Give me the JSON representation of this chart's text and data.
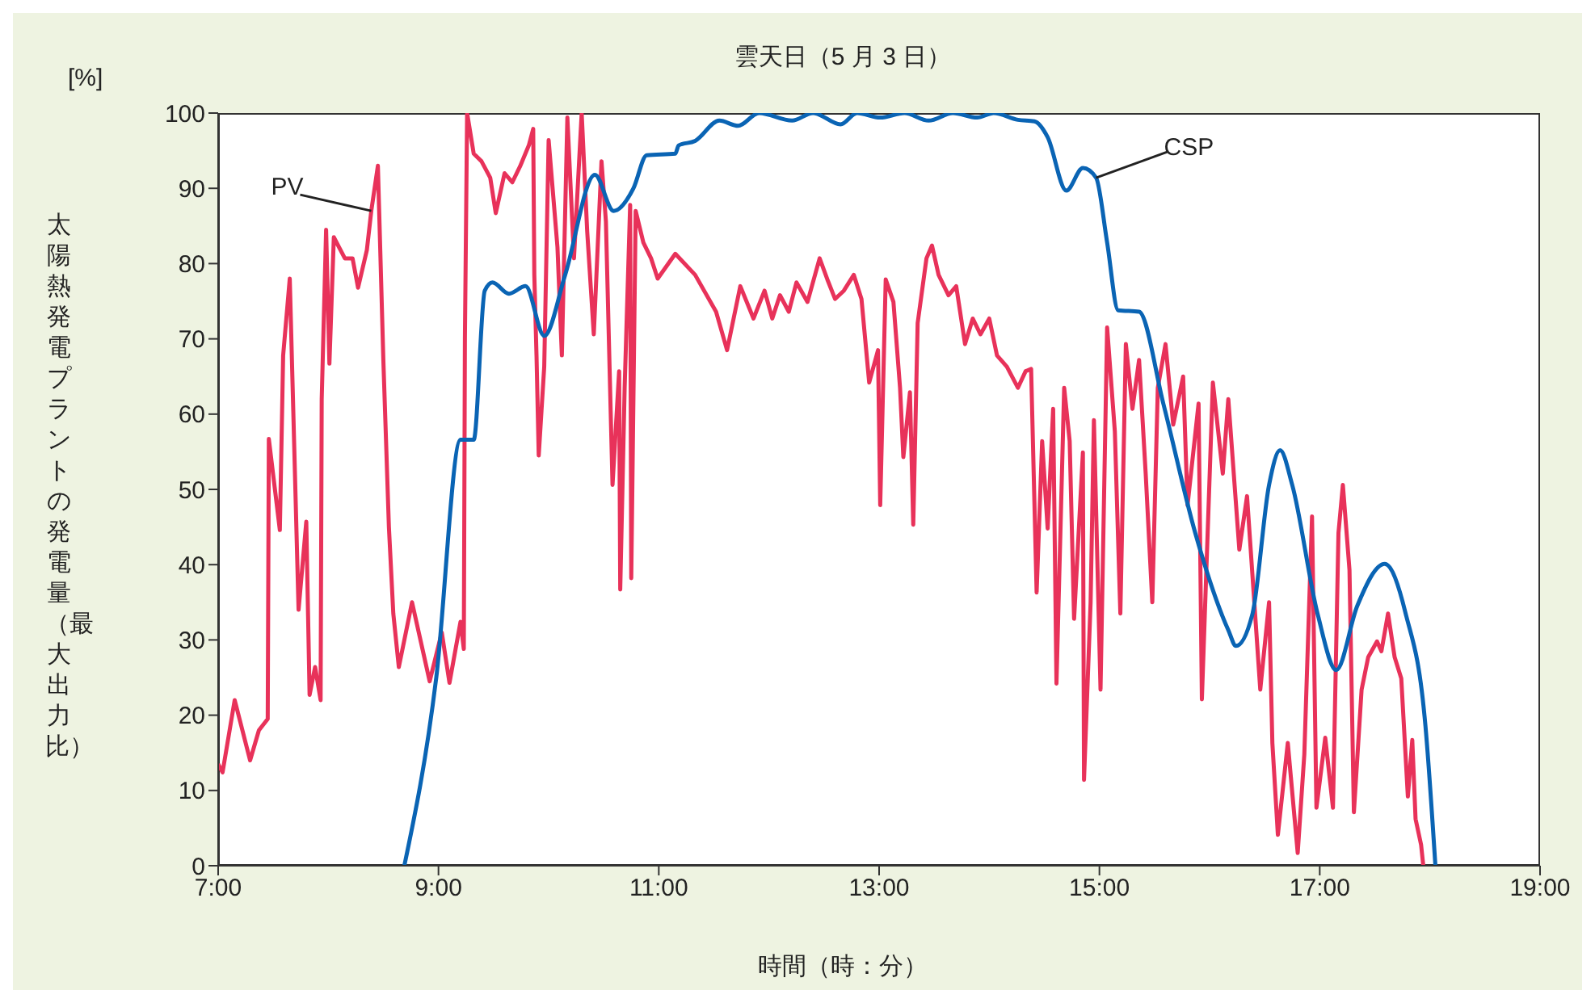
{
  "chart_data": {
    "type": "line",
    "title": "雲天日（5 月 3 日）",
    "xlabel": "時間（時：分）",
    "ylabel": "太陽熱発電プラントの発電量（最大出力比）",
    "annotations": [
      "[%]"
    ],
    "xlim": [
      7,
      19
    ],
    "xticks": [
      {
        "value": 7,
        "label": "7:00"
      },
      {
        "value": 9,
        "label": "9:00"
      },
      {
        "value": 11,
        "label": "11:00"
      },
      {
        "value": 13,
        "label": "13:00"
      },
      {
        "value": 15,
        "label": "15:00"
      },
      {
        "value": 17,
        "label": "17:00"
      },
      {
        "value": 19,
        "label": "19:00"
      }
    ],
    "ylim": [
      0,
      100
    ],
    "yticks": [
      0,
      10,
      20,
      30,
      40,
      50,
      60,
      70,
      80,
      90,
      100
    ],
    "grid": false,
    "legend": false,
    "marker": "none",
    "line_style": "solid",
    "series": [
      {
        "name": "PV",
        "color": "#e8325a",
        "x": [
          7.0,
          7.04,
          7.15,
          7.29,
          7.37,
          7.45,
          7.46,
          7.56,
          7.59,
          7.65,
          7.73,
          7.8,
          7.83,
          7.88,
          7.93,
          7.94,
          7.98,
          8.01,
          8.05,
          8.15,
          8.22,
          8.27,
          8.35,
          8.39,
          8.45,
          8.5,
          8.55,
          8.59,
          8.64,
          8.76,
          8.92,
          9.03,
          9.1,
          9.2,
          9.23,
          9.24,
          9.26,
          9.32,
          9.39,
          9.47,
          9.52,
          9.6,
          9.67,
          9.74,
          9.82,
          9.86,
          9.87,
          9.89,
          9.91,
          9.96,
          10.0,
          10.08,
          10.12,
          10.17,
          10.23,
          10.3,
          10.35,
          10.41,
          10.48,
          10.52,
          10.58,
          10.64,
          10.65,
          10.69,
          10.74,
          10.75,
          10.79,
          10.86,
          10.93,
          10.99,
          11.15,
          11.33,
          11.52,
          11.62,
          11.74,
          11.86,
          11.96,
          12.03,
          12.1,
          12.18,
          12.25,
          12.35,
          12.46,
          12.53,
          12.6,
          12.68,
          12.77,
          12.84,
          12.91,
          12.99,
          13.01,
          13.06,
          13.13,
          13.19,
          13.22,
          13.28,
          13.31,
          13.35,
          13.43,
          13.48,
          13.54,
          13.63,
          13.7,
          13.78,
          13.85,
          13.92,
          14.0,
          14.07,
          14.16,
          14.26,
          14.33,
          14.38,
          14.43,
          14.48,
          14.53,
          14.58,
          14.61,
          14.68,
          14.73,
          14.77,
          14.85,
          14.86,
          14.92,
          14.95,
          15.01,
          15.07,
          15.14,
          15.19,
          15.24,
          15.3,
          15.36,
          15.42,
          15.48,
          15.53,
          15.6,
          15.67,
          15.76,
          15.8,
          15.9,
          15.93,
          16.03,
          16.12,
          16.17,
          16.27,
          16.34,
          16.42,
          16.46,
          16.54,
          16.57,
          16.62,
          16.71,
          16.8,
          16.86,
          16.93,
          16.97,
          17.05,
          17.12,
          17.17,
          17.21,
          17.27,
          17.31,
          17.38,
          17.44,
          17.52,
          17.56,
          17.62,
          17.68,
          17.74,
          17.8,
          17.84,
          17.87,
          17.92,
          17.94
        ],
        "values": [
          13.5,
          12.4,
          22,
          14,
          18,
          19.5,
          56.7,
          44.6,
          67.8,
          78,
          34,
          45.7,
          22.7,
          26.4,
          22,
          62,
          84.5,
          66.7,
          83.5,
          80.7,
          80.7,
          76.8,
          81.8,
          87,
          93,
          67,
          45,
          33.5,
          26.4,
          35,
          24.5,
          31,
          24.3,
          32.4,
          28.8,
          70,
          100,
          94.6,
          93.6,
          91.4,
          86.7,
          92,
          90.8,
          92.9,
          95.7,
          97.9,
          78.5,
          67.8,
          54.5,
          66.3,
          96.4,
          82.2,
          67.8,
          99.4,
          80.7,
          100,
          84.3,
          70.6,
          93.6,
          85.6,
          50.6,
          65.7,
          36.7,
          63.5,
          87.8,
          38.2,
          87,
          82.8,
          80.7,
          78,
          81.3,
          78.5,
          73.6,
          68.5,
          77,
          72.7,
          76.4,
          72.7,
          75.8,
          73.6,
          77.5,
          74.9,
          80.7,
          77.9,
          75.3,
          76.4,
          78.5,
          75.3,
          64.2,
          68.5,
          47.9,
          77.9,
          74.9,
          63.5,
          54.3,
          62.9,
          45.3,
          72.1,
          80.7,
          82.4,
          78.5,
          75.8,
          77,
          69.3,
          72.7,
          70.6,
          72.7,
          67.8,
          66.3,
          63.5,
          65.7,
          66,
          36.3,
          56.4,
          44.8,
          60.7,
          24.2,
          63.5,
          56.4,
          32.8,
          54.9,
          11.4,
          35,
          59.2,
          23.4,
          71.5,
          57.7,
          33.5,
          69.3,
          60.7,
          67.2,
          52.1,
          35,
          63.5,
          69.3,
          58.6,
          65,
          47.9,
          61.4,
          22.1,
          64.2,
          52.1,
          62,
          42,
          49.1,
          32,
          23.4,
          35,
          16.3,
          4.1,
          16.3,
          1.7,
          14.8,
          46.4,
          7.7,
          17,
          7.7,
          44.2,
          50.6,
          39.3,
          7.1,
          23.4,
          27.7,
          29.8,
          28.5,
          33.5,
          27.7,
          24.9,
          9.2,
          16.7,
          6.2,
          2.8,
          0
        ]
      },
      {
        "name": "CSP",
        "color": "#0a64b4",
        "x": [
          8.69,
          8.98,
          9.2,
          9.32,
          9.42,
          9.49,
          9.64,
          9.79,
          9.96,
          10.15,
          10.42,
          10.59,
          10.77,
          10.89,
          11.15,
          11.18,
          11.33,
          11.55,
          11.72,
          11.91,
          12.21,
          12.4,
          12.65,
          12.8,
          13.01,
          13.23,
          13.45,
          13.67,
          13.89,
          14.04,
          14.26,
          14.41,
          14.53,
          14.7,
          14.85,
          14.97,
          15.07,
          15.17,
          15.36,
          15.58,
          15.87,
          16.17,
          16.24,
          16.39,
          16.54,
          16.64,
          16.75,
          16.98,
          17.15,
          17.34,
          17.59,
          17.78,
          17.96,
          18.05
        ],
        "values": [
          0,
          25,
          56.6,
          56.6,
          76.4,
          77.5,
          76,
          77,
          70.4,
          78.5,
          91.8,
          87,
          90,
          94.4,
          94.6,
          95.7,
          96.3,
          99,
          98.3,
          100,
          99,
          100,
          98.5,
          100,
          99.4,
          100,
          99,
          100,
          99.4,
          100,
          99.1,
          98.9,
          96.8,
          89.7,
          92.7,
          91.4,
          82.8,
          73.8,
          73.6,
          61.4,
          44.2,
          31.3,
          29.2,
          33.5,
          50.6,
          55.2,
          50.6,
          33.5,
          26,
          34.5,
          40.1,
          33.5,
          18.5,
          0
        ]
      }
    ]
  }
}
